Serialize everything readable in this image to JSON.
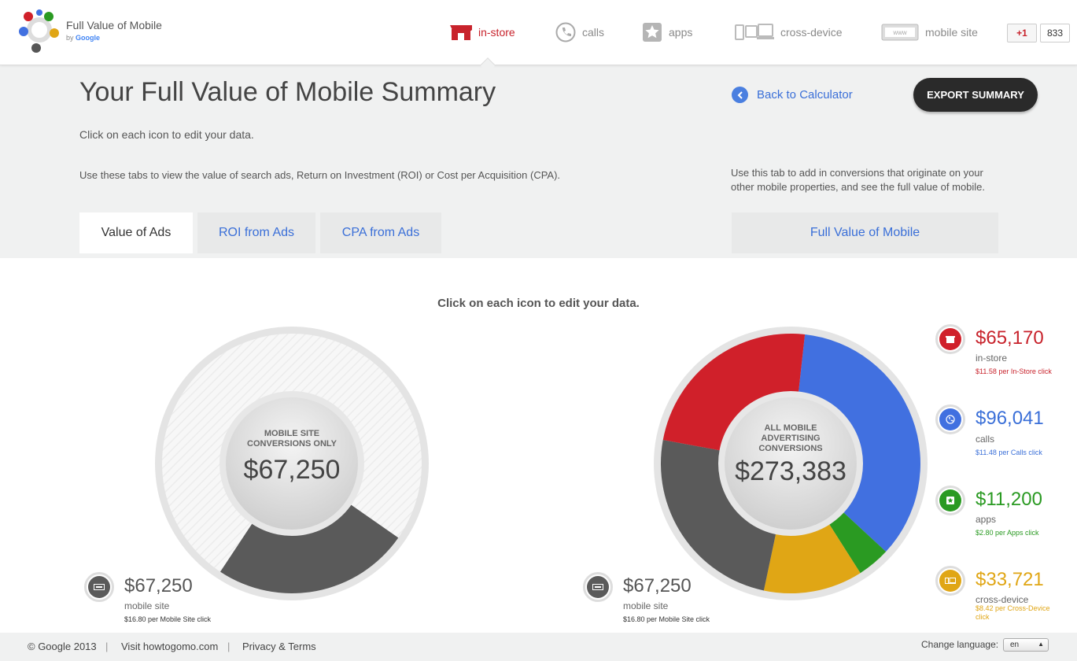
{
  "app": {
    "title": "Full Value of Mobile",
    "by": "by",
    "brand": "Google"
  },
  "nav": [
    {
      "label": "in-store",
      "icon": "store-icon",
      "active": true
    },
    {
      "label": "calls",
      "icon": "phone-icon",
      "active": false
    },
    {
      "label": "apps",
      "icon": "star-icon",
      "active": false
    },
    {
      "label": "cross-device",
      "icon": "devices-icon",
      "active": false
    },
    {
      "label": "mobile site",
      "icon": "browser-icon",
      "active": false
    }
  ],
  "gplus": {
    "label": "+1",
    "count": "833"
  },
  "header": {
    "title": "Your Full Value of Mobile Summary",
    "hint_edit": "Click on each icon to edit your data.",
    "hint_tabs": "Use these tabs to view the value of search ads, Return on Investment (ROI) or Cost per Acquisition (CPA).",
    "hint_full": "Use this tab to add in conversions that originate on your other mobile properties, and see the full value of mobile.",
    "back_label": "Back to Calculator",
    "export_label": "EXPORT SUMMARY"
  },
  "tabs": [
    {
      "label": "Value of Ads",
      "active": true
    },
    {
      "label": "ROI from Ads",
      "active": false
    },
    {
      "label": "CPA from Ads",
      "active": false
    }
  ],
  "full_tab": {
    "label": "Full Value of Mobile"
  },
  "main": {
    "hint": "Click on each icon to edit your data."
  },
  "colors": {
    "in_store": "#d0202a",
    "calls": "#4170e0",
    "apps": "#2a9a22",
    "cross_device": "#e0a615",
    "mobile_site": "#5a5a5a",
    "link": "#3a6fd8"
  },
  "left_chart": {
    "center_label": "MOBILE SITE CONVERSIONS ONLY",
    "center_value": "$67,250",
    "legend": {
      "value": "$67,250",
      "label": "mobile site",
      "sub": "$16.80 per Mobile Site click"
    }
  },
  "right_chart": {
    "center_label": "ALL MOBILE ADVERTISING CONVERSIONS",
    "center_value": "$273,383",
    "legend_mobile": {
      "value": "$67,250",
      "label": "mobile site",
      "sub": "$16.80 per Mobile Site click"
    },
    "legend": [
      {
        "value": "$65,170",
        "label": "in-store",
        "sub": "$11.58 per In-Store click",
        "color": "#c8232c"
      },
      {
        "value": "$96,041",
        "label": "calls",
        "sub": "$11.48 per Calls click",
        "color": "#3a6fd8"
      },
      {
        "value": "$11,200",
        "label": "apps",
        "sub": "$2.80 per Apps click",
        "color": "#2a9a22"
      },
      {
        "value": "$33,721",
        "label": "cross-device",
        "sub": "$8.42 per Cross-Device click",
        "color": "#e0a615"
      }
    ]
  },
  "chart_data": {
    "type": "pie",
    "title": "",
    "series": [
      {
        "name": "in-store",
        "value": 65170
      },
      {
        "name": "calls",
        "value": 96041
      },
      {
        "name": "apps",
        "value": 11200
      },
      {
        "name": "cross-device",
        "value": 33721
      },
      {
        "name": "mobile site",
        "value": 67250
      }
    ],
    "total": 273383
  },
  "footer": {
    "copyright": "© Google 2013",
    "visit": "Visit howtogomo.com",
    "privacy": "Privacy & Terms",
    "lang_label": "Change language:",
    "lang_value": "en"
  }
}
